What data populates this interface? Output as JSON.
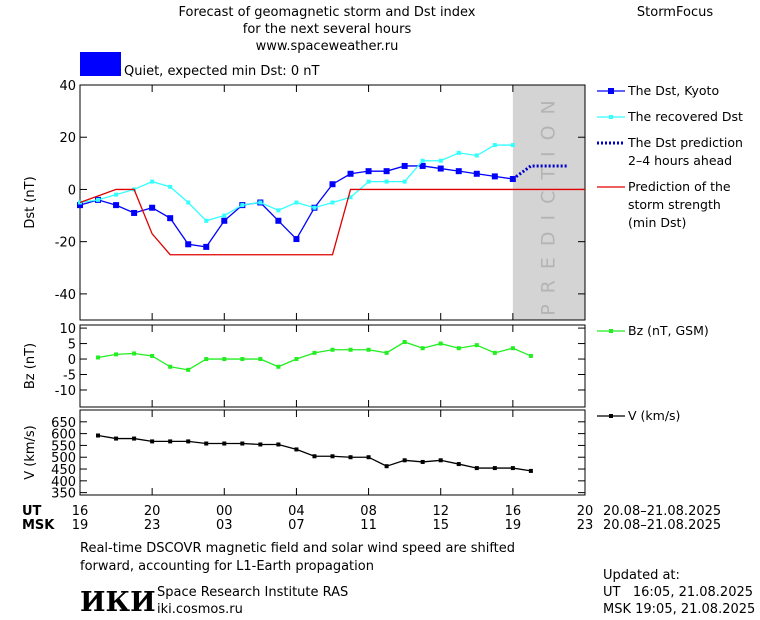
{
  "header": {
    "title_lines": [
      "Forecast of geomagnetic storm and Dst index",
      "for the next several hours",
      "www.spaceweather.ru"
    ],
    "brand": "StormFocus",
    "status": {
      "label": "Quiet, expected min Dst: 0 nT",
      "color": "#0000ff"
    }
  },
  "time_axis": {
    "xlim": [
      0,
      28
    ],
    "ut_label": "UT",
    "msk_label": "MSK",
    "ut_ticks": [
      {
        "value": 0,
        "label": "16"
      },
      {
        "value": 4,
        "label": "20"
      },
      {
        "value": 8,
        "label": "00"
      },
      {
        "value": 12,
        "label": "04"
      },
      {
        "value": 16,
        "label": "08"
      },
      {
        "value": 20,
        "label": "12"
      },
      {
        "value": 24,
        "label": "16"
      },
      {
        "value": 28,
        "label": "20"
      }
    ],
    "msk_ticks": [
      {
        "value": 0,
        "label": "19"
      },
      {
        "value": 4,
        "label": "23"
      },
      {
        "value": 8,
        "label": "03"
      },
      {
        "value": 12,
        "label": "07"
      },
      {
        "value": 16,
        "label": "11"
      },
      {
        "value": 20,
        "label": "15"
      },
      {
        "value": 24,
        "label": "19"
      },
      {
        "value": 28,
        "label": "23"
      }
    ],
    "ut_date": "20.08–21.08.2025",
    "msk_date": "20.08–21.08.2025"
  },
  "chart_data": [
    {
      "type": "line",
      "y_label": "Dst (nT)",
      "ylim": [
        -50,
        40
      ],
      "yticks": [
        40,
        20,
        0,
        -20,
        -40
      ],
      "prediction_zone": {
        "xlim": [
          24,
          28
        ],
        "label": "PREDICTION"
      },
      "series": [
        {
          "name": [
            "The Dst, Kyoto"
          ],
          "color": "#0000ff",
          "marker": "square",
          "line_style": "solid",
          "x": [
            0,
            1,
            2,
            3,
            4,
            5,
            6,
            7,
            8,
            9,
            10,
            11,
            12,
            13,
            14,
            15,
            16,
            17,
            18,
            19,
            20,
            21,
            22,
            23,
            24
          ],
          "values": [
            -6,
            -4,
            -6,
            -9,
            -7,
            -11,
            -21,
            -22,
            -12,
            -6,
            -5,
            -12,
            -19,
            -7,
            2,
            6,
            7,
            7,
            9,
            9,
            8,
            7,
            6,
            5,
            4
          ]
        },
        {
          "name": [
            "The recovered Dst"
          ],
          "color": "#33ffff",
          "marker": "small-square",
          "line_style": "solid",
          "x": [
            0,
            1,
            2,
            3,
            4,
            5,
            6,
            7,
            8,
            9,
            10,
            11,
            12,
            13,
            14,
            15,
            16,
            17,
            18,
            19,
            20,
            21,
            22,
            23,
            24
          ],
          "values": [
            -5,
            -4,
            -2,
            0,
            3,
            1,
            -5,
            -12,
            -10,
            -6,
            -5,
            -8,
            -5,
            -7,
            -5,
            -3,
            3,
            3,
            3,
            11,
            11,
            14,
            13,
            17,
            17
          ]
        },
        {
          "name": [
            "The Dst prediction",
            "2–4 hours ahead"
          ],
          "color": "#0000cc",
          "marker": "none",
          "line_style": "dotted",
          "x": [
            24,
            25,
            26,
            27
          ],
          "values": [
            4,
            9,
            9,
            9
          ]
        },
        {
          "name": [
            "Prediction of the",
            "storm strength",
            "(min Dst)"
          ],
          "color": "#e00000",
          "marker": "none",
          "line_style": "solid",
          "x": [
            0,
            2,
            3,
            4,
            5,
            14,
            15,
            28
          ],
          "values": [
            -5,
            0,
            0,
            -17,
            -25,
            -25,
            0,
            0
          ]
        }
      ]
    },
    {
      "type": "line",
      "y_label": "Bz (nT)",
      "ylim": [
        -15.5,
        11
      ],
      "yticks": [
        10,
        5,
        0,
        -5,
        -10
      ],
      "series": [
        {
          "name": [
            "Bz (nT, GSM)"
          ],
          "color": "#22ee22",
          "marker": "small-square",
          "line_style": "solid",
          "x": [
            1,
            2,
            3,
            4,
            5,
            6,
            7,
            8,
            9,
            10,
            11,
            12,
            13,
            14,
            15,
            16,
            17,
            18,
            19,
            20,
            21,
            22,
            23,
            24,
            25
          ],
          "values": [
            0.5,
            1.5,
            1.8,
            1,
            -2.5,
            -3.5,
            0,
            0,
            0,
            0,
            -2.5,
            0,
            2,
            3,
            3,
            3,
            2,
            5.5,
            3.5,
            5,
            3.5,
            4.5,
            2,
            3.5,
            1
          ]
        }
      ]
    },
    {
      "type": "line",
      "y_label": "V (km/s)",
      "ylim": [
        340,
        700
      ],
      "yticks": [
        650,
        600,
        550,
        500,
        450,
        400,
        350
      ],
      "series": [
        {
          "name": [
            "V (km/s)"
          ],
          "color": "#000000",
          "marker": "small-square",
          "line_style": "solid",
          "x": [
            1,
            2,
            3,
            4,
            5,
            6,
            7,
            8,
            9,
            10,
            11,
            12,
            13,
            14,
            15,
            16,
            17,
            18,
            19,
            20,
            21,
            22,
            23,
            24,
            25
          ],
          "values": [
            592,
            579,
            579,
            567,
            567,
            567,
            558,
            558,
            558,
            554,
            554,
            533,
            504,
            504,
            500,
            500,
            462,
            487,
            480,
            487,
            471,
            454,
            454,
            454,
            442
          ]
        }
      ]
    }
  ],
  "footer": {
    "note_lines": [
      "Real-time DSCOVR magnetic field and solar wind speed are shifted",
      "forward, accounting for L1-Earth propagation"
    ],
    "logo": "ИКИ",
    "institute": "Space Research Institute RAS",
    "site": "iki.cosmos.ru",
    "updated_label": "Updated at:",
    "updated_ut": "UT   16:05, 21.08.2025",
    "updated_msk": "MSK 19:05, 21.08.2025"
  }
}
